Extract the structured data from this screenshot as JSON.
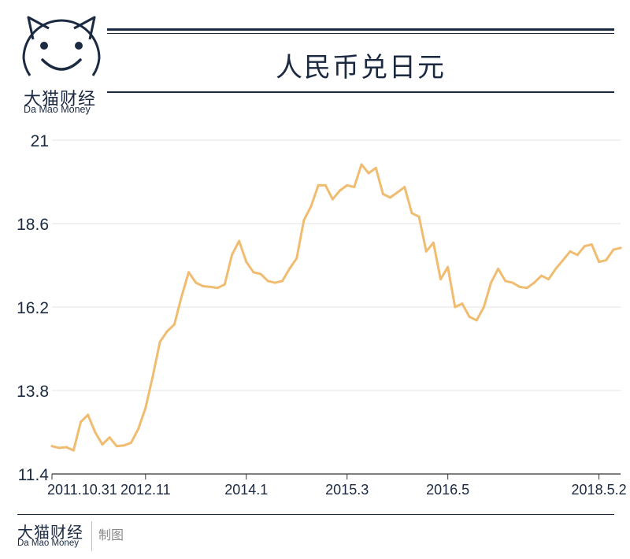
{
  "brand": {
    "name_cn": "大猫财经",
    "name_en": "Da Mao Money"
  },
  "footer": {
    "brand_cn": "大猫财经",
    "brand_en": "Da Mao Money",
    "made_by": "制图"
  },
  "colors": {
    "line": "#f0bc70",
    "text": "#1b2a41",
    "grid": "#e3e3e3"
  },
  "chart_data": {
    "type": "line",
    "title": "人民币兑日元",
    "xlabel": "",
    "ylabel": "",
    "ylim": [
      11.4,
      21
    ],
    "yticks": [
      "21",
      "18.6",
      "16.2",
      "13.8",
      "11.4"
    ],
    "ytick_values": [
      21,
      18.6,
      16.2,
      13.8,
      11.4
    ],
    "grid": true,
    "x_ticks": [
      {
        "label": "2011.10.31",
        "index": 0
      },
      {
        "label": "2012.11",
        "index": 13
      },
      {
        "label": "2014.1",
        "index": 27
      },
      {
        "label": "2015.3",
        "index": 41
      },
      {
        "label": "2016.5",
        "index": 55
      },
      {
        "label": "2018.5.2",
        "index": 76
      }
    ],
    "series": [
      {
        "values": [
          12.2,
          12.15,
          12.17,
          12.08,
          12.9,
          13.1,
          12.6,
          12.25,
          12.45,
          12.2,
          12.22,
          12.3,
          12.7,
          13.3,
          14.2,
          15.2,
          15.5,
          15.7,
          16.5,
          17.2,
          16.9,
          16.8,
          16.78,
          16.75,
          16.85,
          17.7,
          18.1,
          17.5,
          17.2,
          17.15,
          16.95,
          16.9,
          16.95,
          17.3,
          17.6,
          18.7,
          19.1,
          19.7,
          19.7,
          19.3,
          19.55,
          19.7,
          19.65,
          20.3,
          20.05,
          20.2,
          19.45,
          19.35,
          19.5,
          19.65,
          18.9,
          18.8,
          17.8,
          18.05,
          17.0,
          17.35,
          16.2,
          16.3,
          15.92,
          15.82,
          16.2,
          16.9,
          17.3,
          16.95,
          16.9,
          16.78,
          16.75,
          16.9,
          17.1,
          17.0,
          17.3,
          17.55,
          17.8,
          17.7,
          17.95,
          18.0,
          17.5,
          17.55,
          17.85,
          17.9
        ]
      }
    ]
  }
}
